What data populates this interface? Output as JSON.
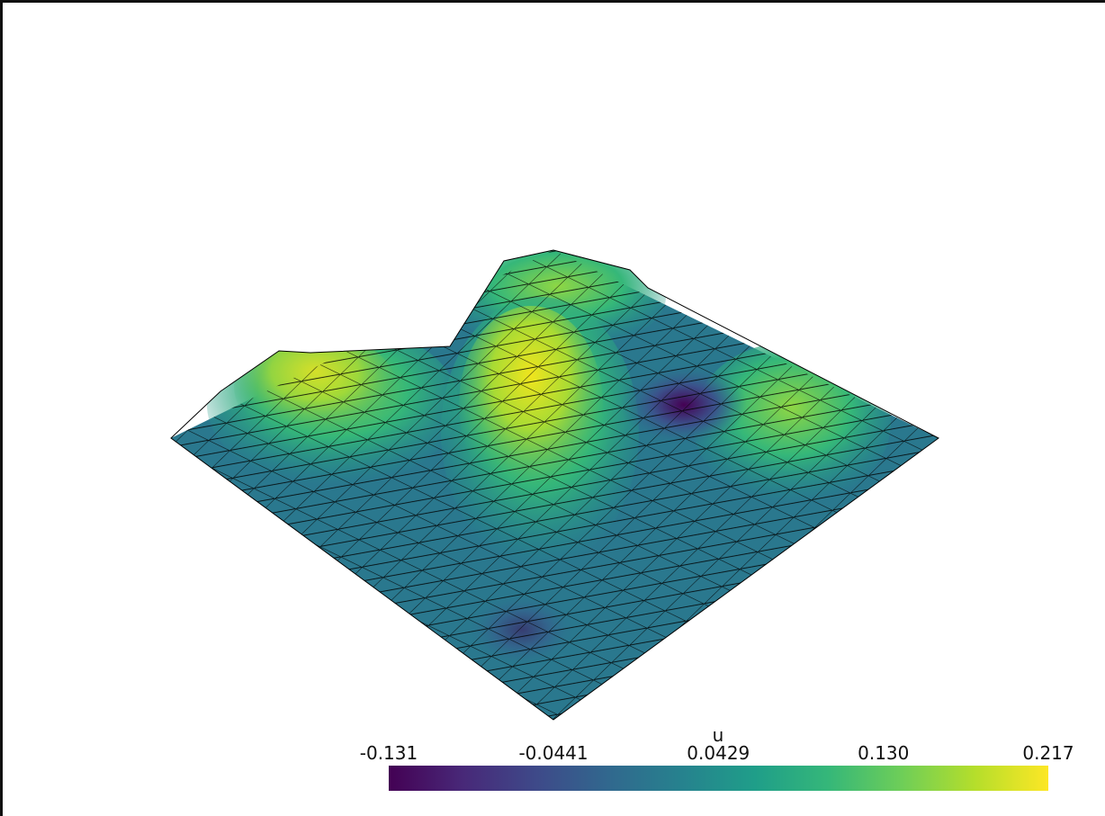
{
  "chart_data": {
    "type": "surface",
    "colorbar": {
      "title": "u",
      "clim": [
        -0.131,
        0.217
      ],
      "ticks": [
        -0.131,
        -0.0441,
        0.0429,
        {
          "value": 0.13,
          "label": "0.130"
        },
        0.217
      ],
      "colormap": "viridis"
    }
  }
}
